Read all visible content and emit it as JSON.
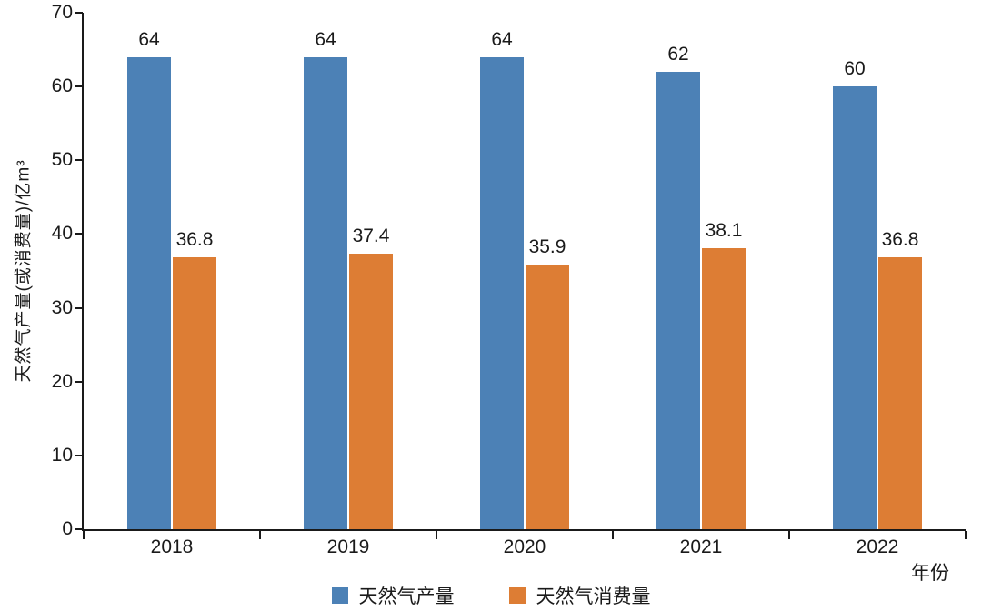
{
  "chart_data": {
    "type": "bar",
    "title": "",
    "categories": [
      "2018",
      "2019",
      "2020",
      "2021",
      "2022"
    ],
    "series": [
      {
        "name": "天然气产量",
        "color": "#4c81b6",
        "values": [
          64,
          64,
          64,
          62,
          60
        ]
      },
      {
        "name": "天然气消费量",
        "color": "#dd7d34",
        "values": [
          36.8,
          37.4,
          35.9,
          38.1,
          36.8
        ]
      }
    ],
    "xlabel": "年份",
    "ylabel": "天然气产量(或消费量)/亿m³",
    "ylim": [
      0,
      70
    ],
    "yticks": [
      0,
      10,
      20,
      30,
      40,
      50,
      60,
      70
    ],
    "grid": false,
    "legend_position": "bottom",
    "bar_value_labels": true
  },
  "colors": {
    "axis": "#1a1a1a",
    "text": "#1a1a1a",
    "background": "#ffffff"
  }
}
